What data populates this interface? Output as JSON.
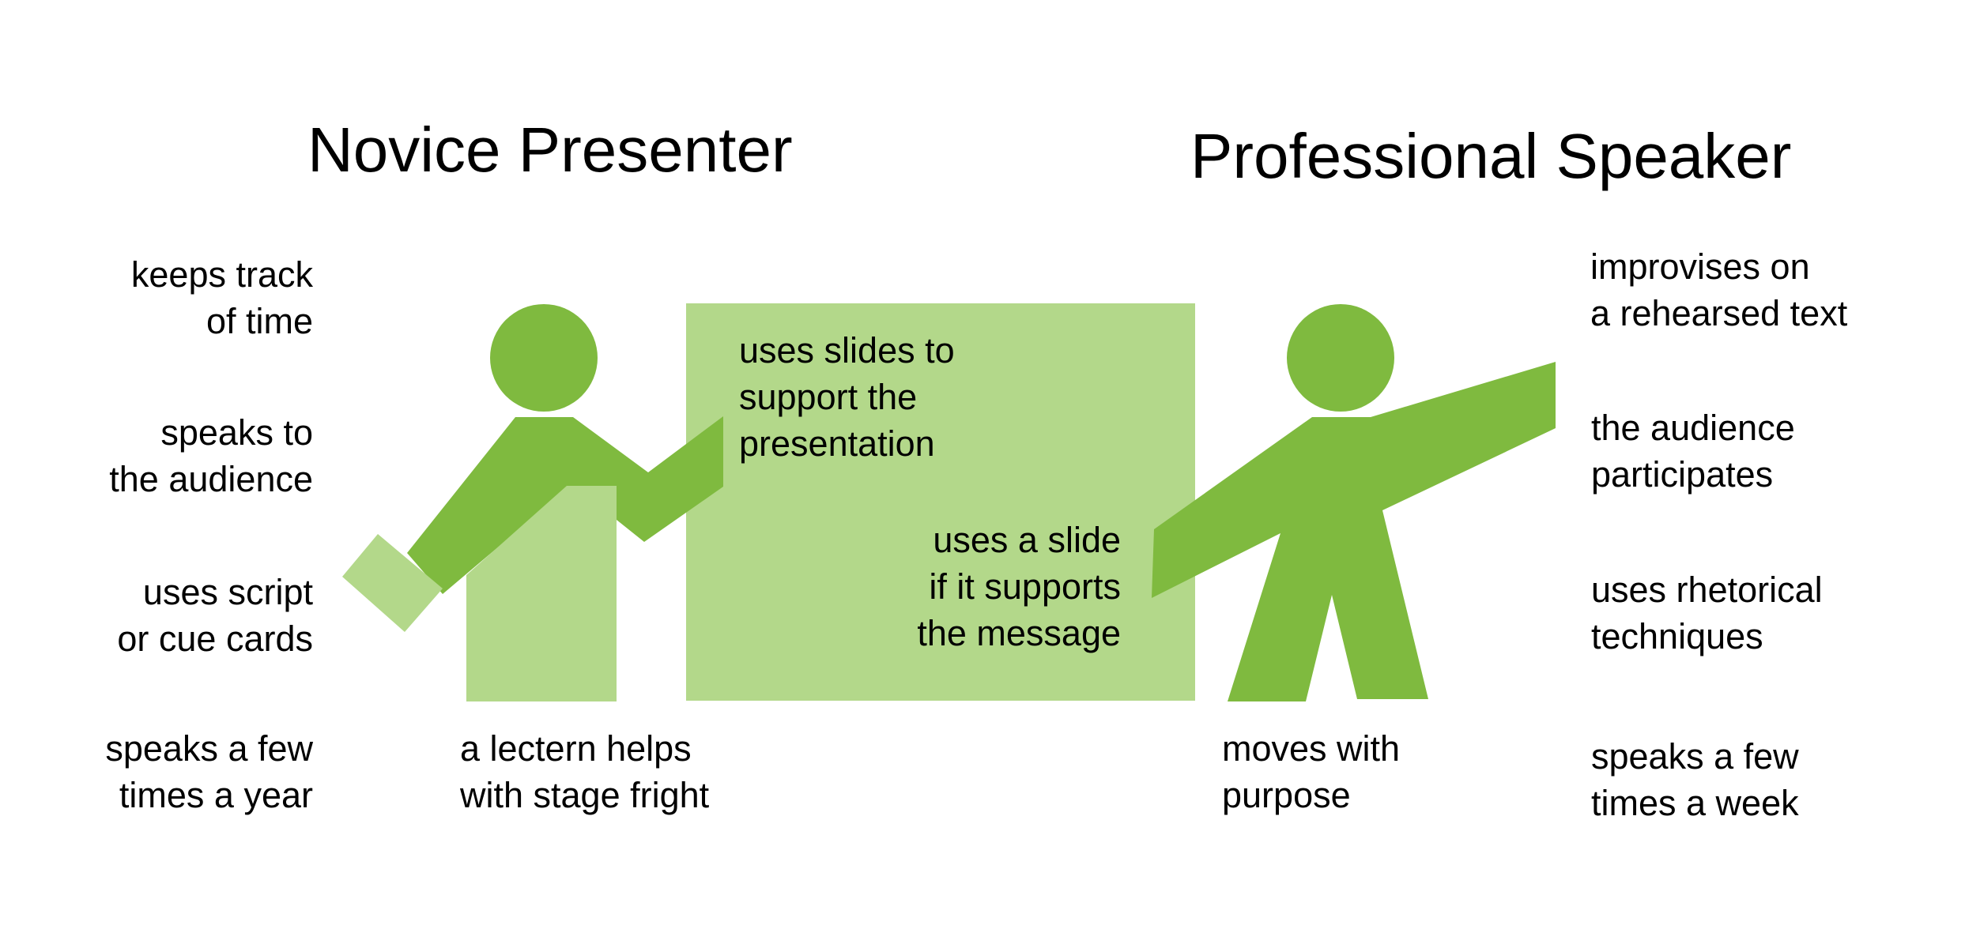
{
  "colors": {
    "dark_green": "#7fba3f",
    "light_green": "#b3d88a",
    "text": "#000000",
    "background": "#ffffff"
  },
  "headings": {
    "novice": "Novice Presenter",
    "professional": "Professional Speaker"
  },
  "novice_traits": {
    "time": [
      "keeps track",
      "of time"
    ],
    "audience": [
      "speaks to",
      "the audience"
    ],
    "script": [
      "uses script",
      "or cue cards"
    ],
    "frequency": [
      "speaks a few",
      "times a year"
    ],
    "lectern": [
      "a lectern helps",
      "with stage fright"
    ],
    "slides": [
      "uses slides to",
      "support the",
      "presentation"
    ]
  },
  "professional_traits": {
    "slide": [
      "uses a slide",
      "if it supports",
      "the message"
    ],
    "improvise": [
      "improvises on",
      "a rehearsed text"
    ],
    "participation": [
      "the audience",
      "participates"
    ],
    "rhetoric": [
      "uses rhetorical",
      "techniques"
    ],
    "frequency": [
      "speaks a few",
      "times a week"
    ],
    "movement": [
      "moves with",
      "purpose"
    ]
  },
  "icons": {
    "novice_figure": "person-pointing-icon",
    "cue_card": "cue-card-icon",
    "lectern": "lectern-icon",
    "slide_screen": "slide-screen-icon",
    "professional_figure": "person-gesturing-icon"
  }
}
